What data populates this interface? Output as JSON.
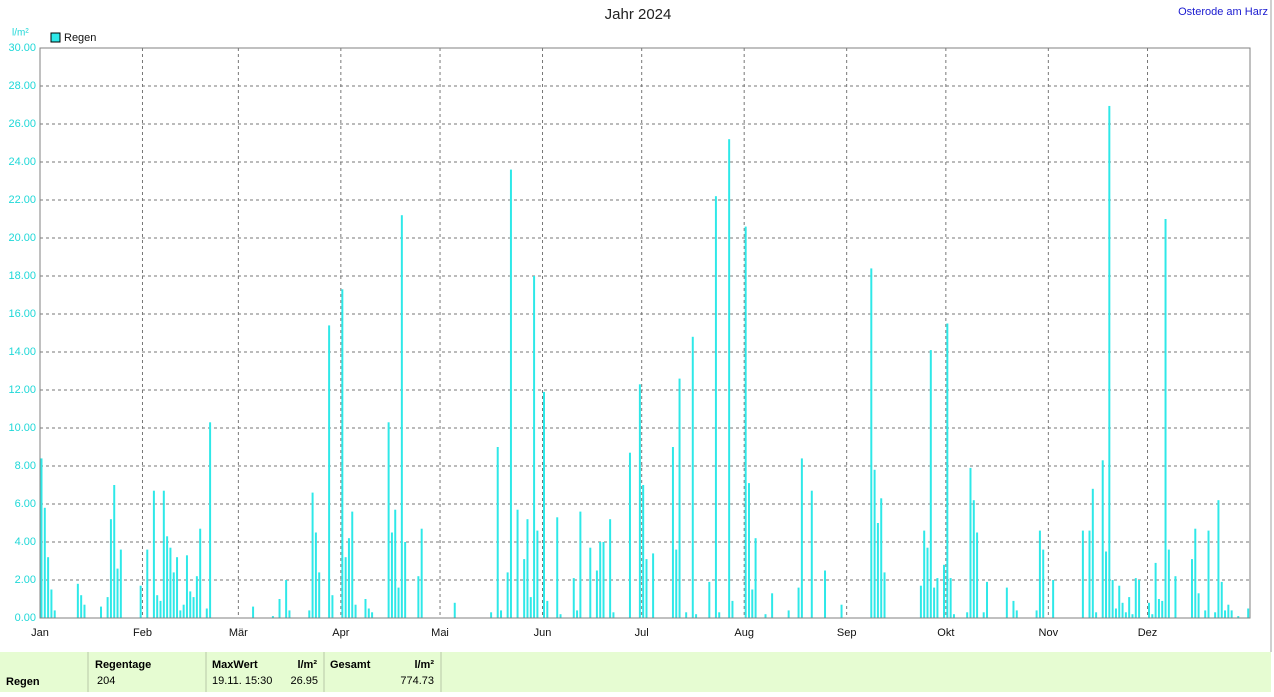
{
  "chart_data": {
    "type": "bar",
    "title": "Jahr 2024",
    "station": "Osterode am Harz",
    "y_label": "l/m²",
    "categories": [
      "Jan",
      null,
      null,
      null,
      null,
      null,
      null,
      null,
      null,
      null,
      null,
      null,
      null,
      null,
      null,
      null,
      null,
      null,
      null,
      null,
      null,
      null,
      null,
      null,
      null,
      null,
      null,
      null,
      null,
      null,
      null,
      "Feb",
      null,
      null,
      null,
      null,
      null,
      null,
      null,
      null,
      null,
      null,
      null,
      null,
      null,
      null,
      null,
      null,
      null,
      null,
      null,
      null,
      null,
      null,
      null,
      null,
      null,
      null,
      null,
      null,
      "Mär",
      null,
      null,
      null,
      null,
      null,
      null,
      null,
      null,
      null,
      null,
      null,
      null,
      null,
      null,
      null,
      null,
      null,
      null,
      null,
      null,
      null,
      null,
      null,
      null,
      null,
      null,
      null,
      null,
      null,
      null,
      "Apr",
      null,
      null,
      null,
      null,
      null,
      null,
      null,
      null,
      null,
      null,
      null,
      null,
      null,
      null,
      null,
      null,
      null,
      null,
      null,
      null,
      null,
      null,
      null,
      null,
      null,
      null,
      null,
      null,
      null,
      "Mai",
      null,
      null,
      null,
      null,
      null,
      null,
      null,
      null,
      null,
      null,
      null,
      null,
      null,
      null,
      null,
      null,
      null,
      null,
      null,
      null,
      null,
      null,
      null,
      null,
      null,
      null,
      null,
      null,
      null,
      null,
      "Jun",
      null,
      null,
      null,
      null,
      null,
      null,
      null,
      null,
      null,
      null,
      null,
      null,
      null,
      null,
      null,
      null,
      null,
      null,
      null,
      null,
      null,
      null,
      null,
      null,
      null,
      null,
      null,
      null,
      null,
      "Jul",
      null,
      null,
      null,
      null,
      null,
      null,
      null,
      null,
      null,
      null,
      null,
      null,
      null,
      null,
      null,
      null,
      null,
      null,
      null,
      null,
      null,
      null,
      null,
      null,
      null,
      null,
      null,
      null,
      null,
      null,
      "Aug",
      null,
      null,
      null,
      null,
      null,
      null,
      null,
      null,
      null,
      null,
      null,
      null,
      null,
      null,
      null,
      null,
      null,
      null,
      null,
      null,
      null,
      null,
      null,
      null,
      null,
      null,
      null,
      null,
      null,
      null,
      "Sep",
      null,
      null,
      null,
      null,
      null,
      null,
      null,
      null,
      null,
      null,
      null,
      null,
      null,
      null,
      null,
      null,
      null,
      null,
      null,
      null,
      null,
      null,
      null,
      null,
      null,
      null,
      null,
      null,
      null,
      "Okt",
      null,
      null,
      null,
      null,
      null,
      null,
      null,
      null,
      null,
      null,
      null,
      null,
      null,
      null,
      null,
      null,
      null,
      null,
      null,
      null,
      null,
      null,
      null,
      null,
      null,
      null,
      null,
      null,
      null,
      null,
      "Nov",
      null,
      null,
      null,
      null,
      null,
      null,
      null,
      null,
      null,
      null,
      null,
      null,
      null,
      null,
      null,
      null,
      null,
      null,
      null,
      null,
      null,
      null,
      null,
      null,
      null,
      null,
      null,
      null,
      null,
      "Dez",
      null,
      null,
      null,
      null,
      null,
      null,
      null,
      null,
      null,
      null,
      null,
      null,
      null,
      null,
      null,
      null,
      null,
      null,
      null,
      null,
      null,
      null,
      null,
      null,
      null,
      null,
      null,
      null,
      null,
      null
    ],
    "series": [
      {
        "name": "Regen",
        "color": "#2ee8e8",
        "values": [
          8.4,
          5.8,
          3.2,
          1.5,
          0.4,
          0,
          0,
          0,
          0,
          0,
          0,
          1.8,
          1.2,
          0.7,
          0,
          0,
          0,
          0,
          0.6,
          0,
          1.1,
          5.2,
          7.0,
          2.6,
          3.6,
          0,
          0,
          0,
          0,
          0,
          1.7,
          0,
          3.6,
          0,
          6.7,
          1.2,
          0.9,
          6.7,
          4.3,
          3.7,
          2.4,
          3.2,
          0.4,
          0.7,
          3.3,
          1.4,
          1.1,
          2.2,
          4.7,
          0,
          0.5,
          10.3,
          0,
          0,
          0,
          0,
          0,
          0,
          0,
          0,
          0,
          0,
          0,
          0,
          0.6,
          0,
          0,
          0,
          0,
          0,
          0.1,
          0,
          1.0,
          0,
          2.0,
          0.4,
          0,
          0,
          0,
          0,
          0,
          0.4,
          6.6,
          4.5,
          2.4,
          0,
          0,
          15.4,
          1.2,
          0,
          0,
          17.3,
          3.2,
          4.2,
          5.6,
          0.7,
          0,
          0,
          1.0,
          0.5,
          0.3,
          0,
          0,
          0,
          0,
          10.3,
          4.5,
          5.7,
          1.6,
          21.2,
          4.0,
          0,
          0,
          0,
          2.2,
          4.7,
          0,
          0,
          0,
          0,
          0,
          0,
          0,
          0,
          0,
          0.8,
          0,
          0,
          0,
          0,
          0,
          0,
          0,
          0,
          0,
          0,
          0.3,
          0,
          9.0,
          0.4,
          0,
          2.4,
          23.6,
          0,
          5.7,
          0,
          3.1,
          5.2,
          1.1,
          18.0,
          4.6,
          0,
          11.9,
          0.9,
          0,
          0,
          5.3,
          0.2,
          0,
          0,
          0,
          2.1,
          0.4,
          5.6,
          0,
          0,
          3.7,
          0,
          2.5,
          4.0,
          4.0,
          0,
          5.2,
          0.3,
          0,
          0,
          0,
          0,
          8.7,
          0,
          0,
          12.3,
          7.0,
          3.1,
          0,
          3.4,
          0,
          0,
          0,
          0,
          0,
          9.0,
          3.6,
          12.6,
          0,
          0.3,
          0,
          14.8,
          0.2,
          0,
          0,
          0,
          1.9,
          0,
          22.2,
          0.3,
          0,
          0,
          25.2,
          0.9,
          0,
          0,
          0,
          20.6,
          7.1,
          1.5,
          4.2,
          0,
          0,
          0.2,
          0,
          1.3,
          0,
          0,
          0,
          0,
          0.4,
          0,
          0,
          1.6,
          8.4,
          0,
          0,
          6.7,
          0,
          0,
          0,
          2.5,
          0,
          0,
          0,
          0,
          0.7,
          0,
          0,
          0,
          0,
          0,
          0,
          0,
          0,
          18.4,
          7.8,
          5.0,
          6.3,
          2.4,
          0,
          0,
          0,
          0,
          0,
          0,
          0,
          0,
          0,
          0,
          1.7,
          4.6,
          3.7,
          14.1,
          1.6,
          2.1,
          0,
          2.8,
          15.5,
          2.1,
          0.2,
          0,
          0,
          0,
          0.3,
          7.9,
          6.2,
          4.5,
          0,
          0.3,
          1.9,
          0,
          0,
          0,
          0,
          0,
          1.6,
          0,
          0.9,
          0.4,
          0,
          0,
          0,
          0,
          0,
          0.4,
          4.6,
          3.6,
          0,
          0,
          2.0,
          0,
          0,
          0,
          0,
          0,
          0,
          0,
          0,
          4.6,
          0,
          4.6,
          6.8,
          0.3,
          0,
          8.3,
          3.5,
          26.95,
          2.0,
          0.5,
          1.7,
          0.8,
          0.3,
          1.1,
          0.2,
          2.1,
          2.0,
          0,
          0,
          0.8,
          0.2,
          2.9,
          1.0,
          0.9,
          21.0,
          3.6,
          0,
          2.2,
          0,
          0,
          0,
          0,
          3.1,
          4.7,
          1.3,
          0,
          0.4,
          4.6,
          0,
          0.3,
          6.2,
          1.9,
          0.4,
          0.7,
          0.4,
          0,
          0.1,
          0,
          0,
          0.5
        ]
      }
    ],
    "ylim": [
      0,
      30
    ],
    "yticks": [
      {
        "value": 0,
        "label": "0.00"
      },
      {
        "value": 2,
        "label": "2.00"
      },
      {
        "value": 4,
        "label": "4.00"
      },
      {
        "value": 6,
        "label": "6.00"
      },
      {
        "value": 8,
        "label": "8.00"
      },
      {
        "value": 10,
        "label": "10.00"
      },
      {
        "value": 12,
        "label": "12.00"
      },
      {
        "value": 14,
        "label": "14.00"
      },
      {
        "value": 16,
        "label": "16.00"
      },
      {
        "value": 18,
        "label": "18.00"
      },
      {
        "value": 20,
        "label": "20.00"
      },
      {
        "value": 22,
        "label": "22.00"
      },
      {
        "value": 24,
        "label": "24.00"
      },
      {
        "value": 26,
        "label": "26.00"
      },
      {
        "value": 28,
        "label": "28.00"
      },
      {
        "value": 30,
        "label": "30.00"
      }
    ],
    "grid": true,
    "legend": "top-left"
  },
  "summary": {
    "row_label": "Regen",
    "rain_days_header": "Regentage",
    "rain_days": 204,
    "max_header": "MaxWert",
    "max_unit": "l/m²",
    "max_time": "19.11. 15:30",
    "max_value": 26.95,
    "total_header": "Gesamt",
    "total_unit": "l/m²",
    "total_value": 774.73
  }
}
